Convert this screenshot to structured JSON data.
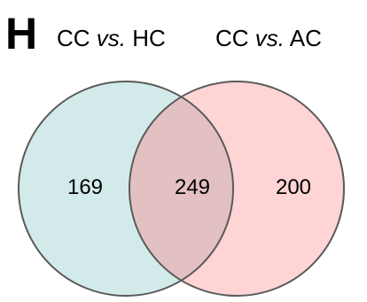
{
  "panel_letter": "H",
  "sets": [
    {
      "pre": "CC ",
      "vs": "vs.",
      "post": " HC",
      "color": "#d2ebea"
    },
    {
      "pre": "CC ",
      "vs": "vs.",
      "post": " AC",
      "color": "#fed4d5"
    }
  ],
  "overlap_color": "#e3c1c2",
  "outline_color": "#5a5a5a",
  "counts": {
    "left_only": "169",
    "overlap": "249",
    "right_only": "200"
  }
}
